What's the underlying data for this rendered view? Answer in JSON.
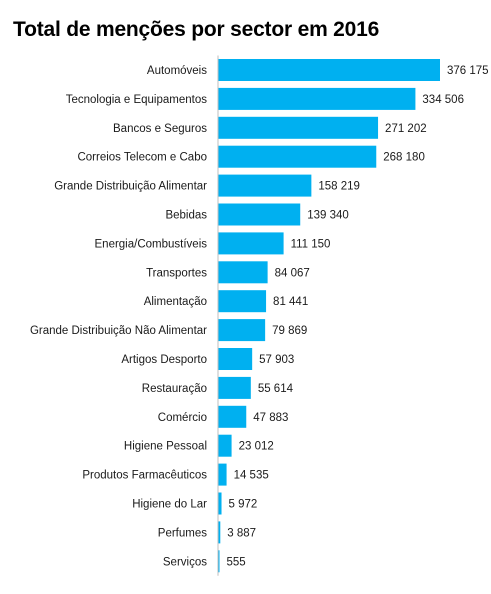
{
  "chart_data": {
    "type": "bar",
    "orientation": "horizontal",
    "title": "Total de menções por sector em 2016",
    "categories": [
      "Automóveis",
      "Tecnologia e Equipamentos",
      "Bancos e Seguros",
      "Correios Telecom e Cabo",
      "Grande Distribuição Alimentar",
      "Bebidas",
      "Energia/Combustíveis",
      "Transportes",
      "Alimentação",
      "Grande Distribuição Não Alimentar",
      "Artigos Desporto",
      "Restauração",
      "Comércio",
      "Higiene Pessoal",
      "Produtos Farmacêuticos",
      "Higiene do Lar",
      "Perfumes",
      "Serviços"
    ],
    "values": [
      376175,
      334506,
      271202,
      268180,
      158219,
      139340,
      111150,
      84067,
      81441,
      79869,
      57903,
      55614,
      47883,
      23012,
      14535,
      5972,
      3887,
      555
    ],
    "value_labels": [
      "376 175",
      "334 506",
      "271 202",
      "268 180",
      "158 219",
      "139 340",
      "111 150",
      "84 067",
      "81 441",
      "79 869",
      "57 903",
      "55 614",
      "47 883",
      "23 012",
      "14 535",
      "5 972",
      "3 887",
      "555"
    ],
    "bar_color": "#00B0F0",
    "axis_line_color": "#BFBFBF",
    "grid": false,
    "legend": false
  }
}
